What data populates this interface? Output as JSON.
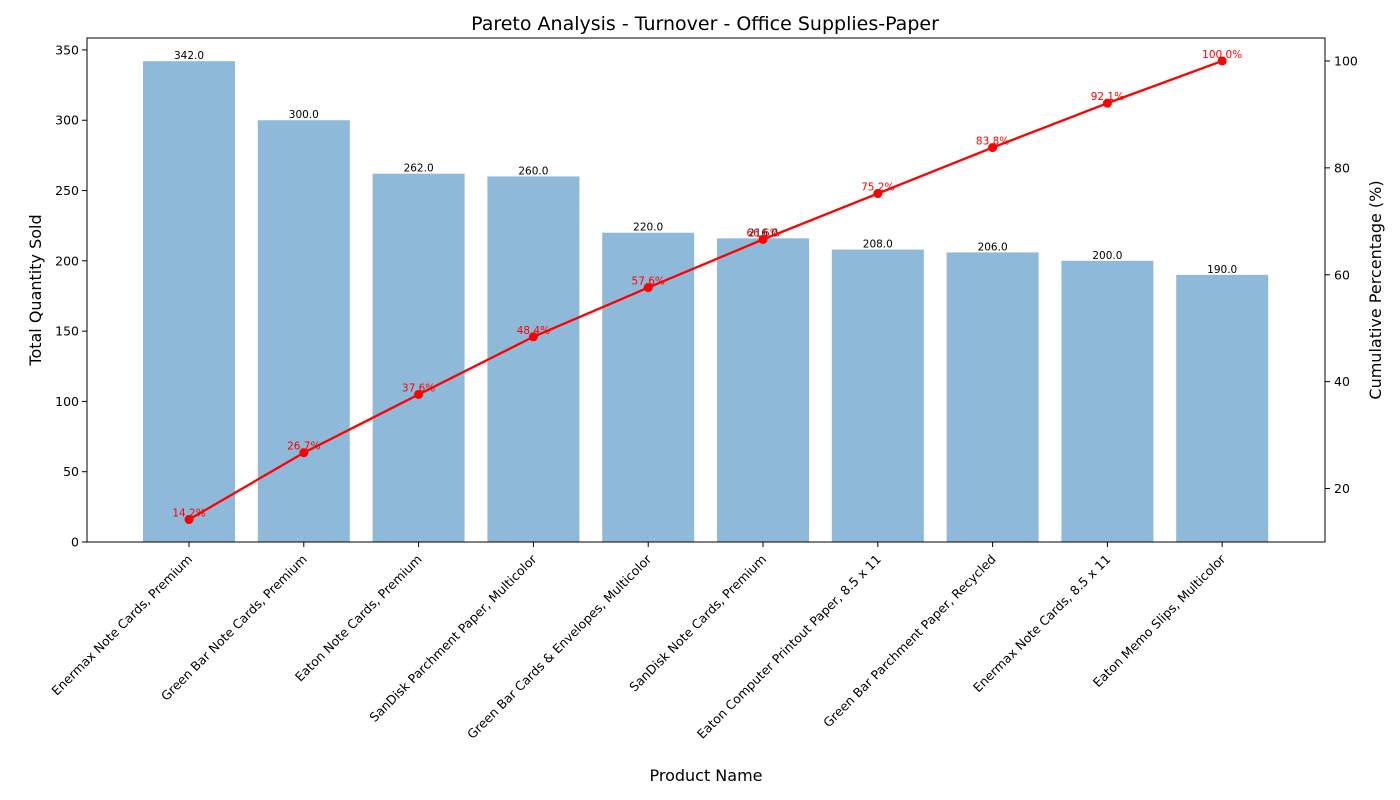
{
  "chart_data": {
    "type": "bar",
    "title": "Pareto Analysis - Turnover - Office Supplies-Paper",
    "xlabel": "Product Name",
    "ylabel": "Total Quantity Sold",
    "y2label": "Cumulative Percentage (%)",
    "ylim": [
      0,
      358.5
    ],
    "y2lim": [
      10.0,
      104.3
    ],
    "yticks": [
      0,
      50,
      100,
      150,
      200,
      250,
      300,
      350
    ],
    "y2ticks": [
      20,
      40,
      60,
      80,
      100
    ],
    "grid": false,
    "categories": [
      "Enermax Note Cards, Premium",
      "Green Bar Note Cards, Premium",
      "Eaton Note Cards, Premium",
      "SanDisk Parchment Paper, Multicolor",
      "Green Bar Cards & Envelopes, Multicolor",
      "SanDisk Note Cards, Premium",
      "Eaton Computer Printout Paper, 8.5 x 11",
      "Green Bar Parchment Paper, Recycled",
      "Enermax Note Cards, 8.5 x 11",
      "Eaton Memo Slips, Multicolor"
    ],
    "series": [
      {
        "type": "bar",
        "values": [
          342.0,
          300.0,
          262.0,
          260.0,
          220.0,
          216.0,
          208.0,
          206.0,
          200.0,
          190.0
        ],
        "labels": [
          "342.0",
          "300.0",
          "262.0",
          "260.0",
          "220.0",
          "216.0",
          "208.0",
          "206.0",
          "200.0",
          "190.0"
        ],
        "color": "#8fb9d8"
      },
      {
        "type": "line",
        "axis": "secondary",
        "values": [
          14.2,
          26.7,
          37.6,
          48.4,
          57.6,
          66.6,
          75.2,
          83.8,
          92.1,
          100.0
        ],
        "labels": [
          "14.2%",
          "26.7%",
          "37.6%",
          "48.4%",
          "57.6%",
          "66.6%",
          "75.2%",
          "83.8%",
          "92.1%",
          "100.0%"
        ],
        "color": "#ff0000"
      }
    ]
  }
}
